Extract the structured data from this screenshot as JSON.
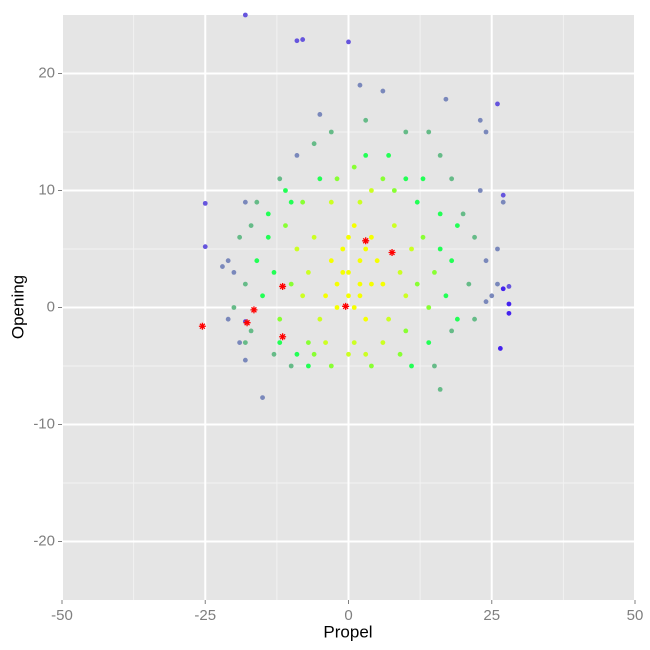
{
  "chart_data": {
    "type": "scatter",
    "x_label": "Propel",
    "y_label": "Opening",
    "xlim": [
      -50,
      50
    ],
    "ylim": [
      -25,
      25
    ],
    "xticks": [
      -50,
      -25,
      0,
      25,
      50
    ],
    "yticks": [
      -20,
      -10,
      0,
      10,
      20
    ],
    "grid": true,
    "series": [
      {
        "color": "#6655dd",
        "x": [
          -18,
          -9,
          -8,
          0,
          26,
          -25,
          -25,
          -18,
          27,
          28
        ],
        "y": [
          25,
          22.8,
          22.9,
          22.7,
          17.4,
          5.2,
          8.9,
          -1.2,
          9.6,
          1.8
        ]
      },
      {
        "color": "#4422ee",
        "x": [
          28,
          28,
          26.5,
          27
        ],
        "y": [
          0.3,
          -0.5,
          -3.5,
          1.6
        ]
      },
      {
        "color": "#7a88bb",
        "x": [
          -21,
          -20,
          -22,
          24,
          24,
          25,
          23,
          -9,
          -5,
          2,
          6,
          17,
          23,
          24,
          -19,
          -18,
          -15,
          -21,
          -18,
          26,
          26,
          27
        ],
        "y": [
          4,
          3,
          3.5,
          4,
          0.5,
          1,
          10,
          13,
          16.5,
          19,
          18.5,
          17.8,
          16,
          15,
          -3,
          -4.5,
          -7.7,
          -1,
          9,
          5,
          2,
          9
        ]
      },
      {
        "color": "#66bb88",
        "x": [
          -18,
          -17,
          20,
          21,
          -16,
          -13,
          22,
          -19,
          18,
          -3,
          10,
          -12,
          16,
          -20,
          -18,
          22,
          18,
          3,
          -6,
          14,
          -17,
          15,
          16,
          -10
        ],
        "y": [
          2,
          -2,
          8,
          2,
          9,
          -4,
          6,
          6,
          -2,
          15,
          15,
          11,
          13,
          0,
          -3,
          -1,
          11,
          16,
          14,
          15,
          7,
          -5,
          -7,
          -5
        ]
      },
      {
        "color": "#22ff55",
        "x": [
          -13,
          -14,
          16,
          17,
          -12,
          14,
          -10,
          12,
          3,
          -5,
          18,
          -15,
          10,
          -9,
          16,
          -14,
          7,
          19,
          -11,
          13,
          -7,
          11,
          19,
          -16
        ],
        "y": [
          3,
          6,
          5,
          1,
          -3,
          -3,
          9,
          9,
          13,
          11,
          4,
          1,
          11,
          -4,
          8,
          8,
          13,
          7,
          10,
          11,
          -5,
          -5,
          -1,
          4
        ]
      },
      {
        "color": "#88ff33",
        "x": [
          -10,
          12,
          -2,
          6,
          -7,
          9,
          13,
          -11,
          4,
          -3,
          14,
          -12,
          8,
          -8,
          1,
          10,
          -6,
          15
        ],
        "y": [
          2,
          2,
          11,
          11,
          -3,
          -4,
          6,
          7,
          -5,
          -5,
          0,
          -1,
          10,
          9,
          12,
          -2,
          -4,
          3
        ]
      },
      {
        "color": "#ccff22",
        "x": [
          -7,
          9,
          2,
          1,
          -6,
          8,
          -5,
          7,
          -8,
          10,
          4,
          -3,
          3,
          -4,
          6,
          11,
          -9,
          0
        ],
        "y": [
          3,
          3,
          9,
          -3,
          6,
          7,
          -1,
          -1,
          1,
          1,
          10,
          9,
          -4,
          -3,
          -3,
          5,
          5,
          -4
        ]
      },
      {
        "color": "#f5ff00",
        "x": [
          0,
          2,
          -2,
          4,
          1,
          3,
          -1,
          5,
          -3,
          2,
          0,
          6,
          -4,
          1,
          3,
          -2,
          4,
          -1,
          2,
          0
        ],
        "y": [
          3,
          4,
          2,
          2,
          0,
          5,
          5,
          4,
          4,
          1,
          6,
          2,
          1,
          7,
          -1,
          0,
          6,
          3,
          2,
          1
        ]
      },
      {
        "color": "#ff0000",
        "shape": "asterisk",
        "x": [
          3,
          7.6,
          -11.5,
          -16.5,
          -0.5,
          -17.7,
          -25.5,
          -11.5
        ],
        "y": [
          5.7,
          4.7,
          1.8,
          -0.2,
          0.1,
          -1.3,
          -1.6,
          -2.5
        ]
      }
    ]
  }
}
